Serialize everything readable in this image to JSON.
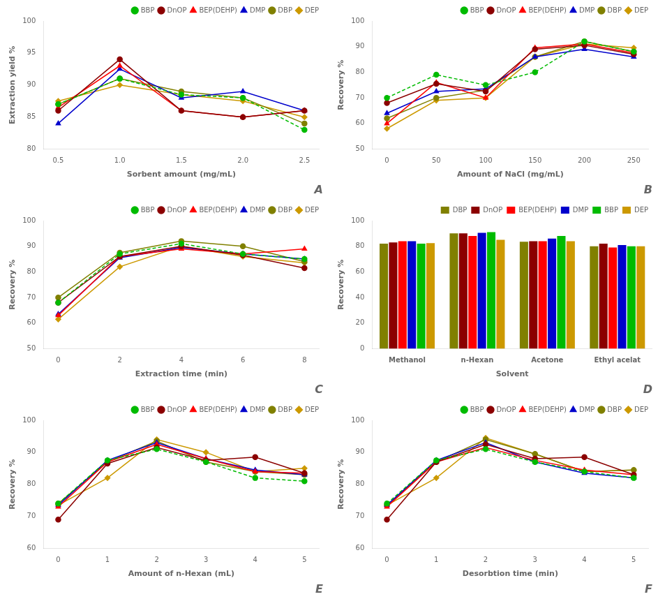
{
  "chart_data": [
    {
      "type": "line",
      "title": "A",
      "xlabel": "Sorbent amount (mg/mL)",
      "ylabel": "Extraction yield %",
      "x": [
        0.5,
        1.0,
        1.5,
        2.0,
        2.5
      ],
      "xlim": [
        0.38,
        2.62
      ],
      "xticks": [
        0.5,
        {
          "value": 1.0,
          "label": "1.0"
        },
        1.5,
        {
          "value": 2.0,
          "label": "2.0"
        },
        2.5
      ],
      "ylim": [
        80,
        100
      ],
      "yticks": [
        80,
        85,
        90,
        95,
        100
      ],
      "grid": false,
      "legend": "upper right",
      "series": [
        {
          "name": "BBP",
          "color": "#00bb00",
          "marker": "circle",
          "line_style": "dashed",
          "values": [
            87.0,
            91.0,
            88.5,
            88.0,
            83.0
          ]
        },
        {
          "name": "DnOP",
          "color": "#8B0000",
          "marker": "circle",
          "line_style": "solid",
          "values": [
            86.0,
            94.0,
            86.0,
            85.0,
            86.0
          ]
        },
        {
          "name": "BEP(DEHP)",
          "color": "#ff0000",
          "marker": "triangle",
          "line_style": "solid",
          "values": [
            86.5,
            93.0,
            86.0,
            85.0,
            86.0
          ]
        },
        {
          "name": "DMP",
          "color": "#0000cc",
          "marker": "triangle",
          "line_style": "solid",
          "values": [
            84.0,
            92.5,
            88.0,
            89.0,
            86.0
          ]
        },
        {
          "name": "DBP",
          "color": "#808000",
          "marker": "circle",
          "line_style": "solid",
          "values": [
            87.0,
            91.0,
            89.0,
            88.0,
            84.0
          ]
        },
        {
          "name": "DEP",
          "color": "#cc9900",
          "marker": "diamond",
          "line_style": "solid",
          "values": [
            87.5,
            90.0,
            88.5,
            87.5,
            85.0
          ]
        }
      ]
    },
    {
      "type": "line",
      "title": "B",
      "xlabel": "Amount of NaCl (mg/mL)",
      "ylabel": "Recovery %",
      "x": [
        0,
        50,
        100,
        150,
        200,
        250
      ],
      "xlim": [
        -15,
        265
      ],
      "xticks": [
        0,
        50,
        100,
        150,
        200,
        250
      ],
      "ylim": [
        50,
        100
      ],
      "yticks": [
        50,
        60,
        70,
        80,
        90,
        100
      ],
      "grid": false,
      "legend": "upper right",
      "series": [
        {
          "name": "BBP",
          "color": "#00bb00",
          "marker": "circle",
          "line_style": "dashed",
          "values": [
            70.0,
            79.0,
            75.0,
            80.0,
            92.0,
            88.0
          ]
        },
        {
          "name": "DnOP",
          "color": "#8B0000",
          "marker": "circle",
          "line_style": "solid",
          "values": [
            68.0,
            75.5,
            72.5,
            89.0,
            90.5,
            87.0
          ]
        },
        {
          "name": "BEP(DEHP)",
          "color": "#ff0000",
          "marker": "triangle",
          "line_style": "solid",
          "values": [
            60.0,
            76.0,
            70.0,
            89.5,
            91.0,
            87.5
          ]
        },
        {
          "name": "DMP",
          "color": "#0000cc",
          "marker": "triangle",
          "line_style": "solid",
          "values": [
            64.0,
            72.5,
            73.5,
            86.0,
            89.0,
            86.0
          ]
        },
        {
          "name": "DBP",
          "color": "#808000",
          "marker": "circle",
          "line_style": "solid",
          "values": [
            62.0,
            70.0,
            73.0,
            86.0,
            92.0,
            88.0
          ]
        },
        {
          "name": "DEP",
          "color": "#cc9900",
          "marker": "diamond",
          "line_style": "solid",
          "values": [
            58.0,
            69.0,
            70.0,
            86.0,
            91.0,
            89.5
          ]
        }
      ]
    },
    {
      "type": "line",
      "title": "C",
      "xlabel": "Extraction time (min)",
      "ylabel": "Recovery %",
      "x": [
        0,
        2,
        4,
        6,
        8
      ],
      "xlim": [
        -0.48,
        8.48
      ],
      "xticks": [
        0,
        2,
        4,
        6,
        8
      ],
      "ylim": [
        50,
        100
      ],
      "yticks": [
        50,
        60,
        70,
        80,
        90,
        100
      ],
      "grid": false,
      "legend": "upper right",
      "series": [
        {
          "name": "BBP",
          "color": "#00bb00",
          "marker": "circle",
          "line_style": "dashed",
          "values": [
            68.0,
            87.0,
            91.0,
            87.0,
            85.0
          ]
        },
        {
          "name": "DnOP",
          "color": "#8B0000",
          "marker": "circle",
          "line_style": "solid",
          "values": [
            68.0,
            86.0,
            90.0,
            86.5,
            81.5
          ]
        },
        {
          "name": "BEP(DEHP)",
          "color": "#ff0000",
          "marker": "triangle",
          "line_style": "solid",
          "values": [
            63.0,
            86.0,
            89.0,
            87.0,
            89.0
          ]
        },
        {
          "name": "DMP",
          "color": "#0000cc",
          "marker": "triangle",
          "line_style": "solid",
          "values": [
            63.5,
            85.5,
            89.5,
            87.0,
            85.0
          ]
        },
        {
          "name": "DBP",
          "color": "#808000",
          "marker": "circle",
          "line_style": "solid",
          "values": [
            70.0,
            87.5,
            92.0,
            90.0,
            84.0
          ]
        },
        {
          "name": "DEP",
          "color": "#cc9900",
          "marker": "diamond",
          "line_style": "solid",
          "values": [
            61.5,
            82.0,
            90.0,
            86.0,
            83.5
          ]
        }
      ]
    },
    {
      "type": "bar",
      "title": "D",
      "xlabel": "Solvent",
      "ylabel": "Recovery %",
      "categories": [
        "Methanol",
        "n-Hexan",
        "Acetone",
        "Ethyl acelat"
      ],
      "ylim": [
        0,
        100
      ],
      "yticks": [
        0,
        20,
        40,
        60,
        80,
        100
      ],
      "grid": false,
      "legend": "upper right",
      "series": [
        {
          "name": "DBP",
          "color": "#808000",
          "values": [
            82.0,
            90.0,
            83.5,
            80.0
          ]
        },
        {
          "name": "DnOP",
          "color": "#8B0000",
          "values": [
            83.0,
            90.0,
            84.0,
            82.0
          ]
        },
        {
          "name": "BEP(DEHP)",
          "color": "#ff0000",
          "values": [
            84.0,
            88.0,
            84.0,
            79.0
          ]
        },
        {
          "name": "DMP",
          "color": "#0000cc",
          "values": [
            84.0,
            90.5,
            86.0,
            81.0
          ]
        },
        {
          "name": "BBP",
          "color": "#00bb00",
          "values": [
            82.0,
            91.0,
            88.0,
            80.0
          ]
        },
        {
          "name": "DEP",
          "color": "#cc9900",
          "values": [
            82.5,
            85.0,
            84.0,
            80.0
          ]
        }
      ]
    },
    {
      "type": "line",
      "title": "E",
      "xlabel": "Amount of n-Hexan (mL)",
      "ylabel": "Recovery %",
      "x": [
        0,
        1,
        2,
        3,
        4,
        5
      ],
      "xlim": [
        -0.3,
        5.3
      ],
      "xticks": [
        0,
        1,
        2,
        3,
        4,
        5
      ],
      "ylim": [
        60,
        100
      ],
      "yticks": [
        60,
        70,
        80,
        90,
        100
      ],
      "grid": false,
      "legend": "upper right",
      "series": [
        {
          "name": "BBP",
          "color": "#00bb00",
          "marker": "circle",
          "line_style": "dashed",
          "values": [
            74.0,
            87.5,
            91.0,
            87.0,
            82.0,
            81.0
          ]
        },
        {
          "name": "DnOP",
          "color": "#8B0000",
          "marker": "circle",
          "line_style": "solid",
          "values": [
            69.0,
            86.5,
            91.5,
            87.5,
            88.5,
            83.5
          ]
        },
        {
          "name": "BEP(DEHP)",
          "color": "#ff0000",
          "marker": "triangle",
          "line_style": "solid",
          "values": [
            73.0,
            87.0,
            92.5,
            88.0,
            84.0,
            83.5
          ]
        },
        {
          "name": "DMP",
          "color": "#0000cc",
          "marker": "triangle",
          "line_style": "solid",
          "values": [
            73.5,
            87.5,
            93.0,
            88.0,
            84.5,
            83.0
          ]
        },
        {
          "name": "DBP",
          "color": "#808000",
          "marker": "circle",
          "line_style": "solid",
          "values": [
            74.0,
            87.0,
            93.5,
            87.0,
            84.0,
            83.0
          ]
        },
        {
          "name": "DEP",
          "color": "#cc9900",
          "marker": "diamond",
          "line_style": "solid",
          "values": [
            73.5,
            82.0,
            94.0,
            90.0,
            84.0,
            85.0
          ]
        }
      ]
    },
    {
      "type": "line",
      "title": "F",
      "xlabel": "Desorbtion time (min)",
      "ylabel": "Recovery %",
      "x": [
        0,
        1,
        2,
        3,
        4,
        5
      ],
      "xlim": [
        -0.3,
        5.3
      ],
      "xticks": [
        0,
        1,
        2,
        3,
        4,
        5
      ],
      "ylim": [
        60,
        100
      ],
      "yticks": [
        60,
        70,
        80,
        90,
        100
      ],
      "grid": false,
      "legend": "upper right",
      "series": [
        {
          "name": "BBP",
          "color": "#00bb00",
          "marker": "circle",
          "line_style": "dashed",
          "values": [
            74.0,
            87.5,
            91.0,
            87.0,
            84.0,
            82.0
          ]
        },
        {
          "name": "DnOP",
          "color": "#8B0000",
          "marker": "circle",
          "line_style": "solid",
          "values": [
            69.0,
            87.0,
            92.5,
            88.0,
            88.5,
            83.0
          ]
        },
        {
          "name": "BEP(DEHP)",
          "color": "#ff0000",
          "marker": "triangle",
          "line_style": "solid",
          "values": [
            73.0,
            87.0,
            91.5,
            87.5,
            84.5,
            83.0
          ]
        },
        {
          "name": "DMP",
          "color": "#0000cc",
          "marker": "triangle",
          "line_style": "solid",
          "values": [
            73.5,
            87.5,
            93.0,
            87.0,
            83.5,
            82.0
          ]
        },
        {
          "name": "DBP",
          "color": "#808000",
          "marker": "circle",
          "line_style": "solid",
          "values": [
            73.5,
            87.0,
            94.0,
            89.5,
            84.0,
            84.5
          ]
        },
        {
          "name": "DEP",
          "color": "#cc9900",
          "marker": "diamond",
          "line_style": "solid",
          "values": [
            73.5,
            82.0,
            94.5,
            89.5,
            84.0,
            84.5
          ]
        }
      ]
    }
  ]
}
